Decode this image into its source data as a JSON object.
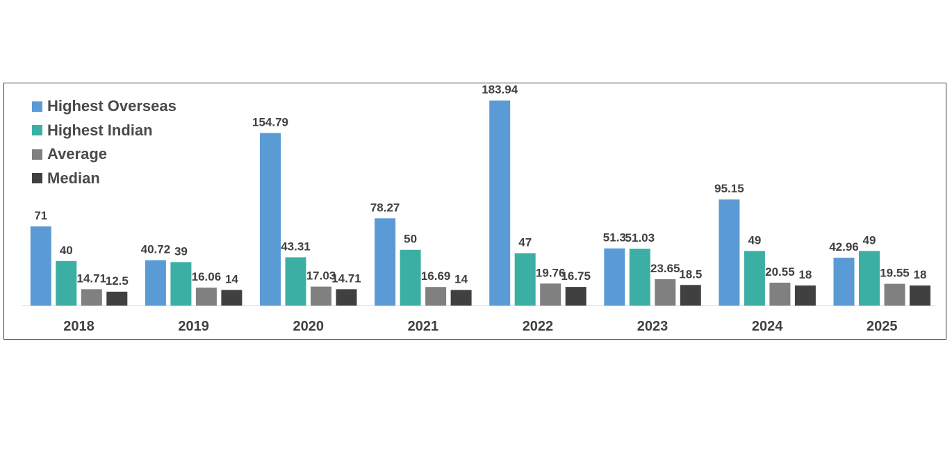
{
  "chart_data": {
    "type": "bar",
    "categories": [
      "2018",
      "2019",
      "2020",
      "2021",
      "2022",
      "2023",
      "2024",
      "2025"
    ],
    "series": [
      {
        "name": "Highest Overseas",
        "color": "#5b9bd5",
        "values": [
          71,
          40.72,
          154.79,
          78.27,
          183.94,
          51.3,
          95.15,
          42.96
        ]
      },
      {
        "name": "Highest Indian",
        "color": "#3cafa5",
        "values": [
          40,
          39,
          43.31,
          50,
          47,
          51.03,
          49,
          49
        ]
      },
      {
        "name": "Average",
        "color": "#808080",
        "values": [
          14.71,
          16.06,
          17.03,
          16.69,
          19.76,
          23.65,
          20.55,
          19.55
        ]
      },
      {
        "name": "Median",
        "color": "#404040",
        "values": [
          12.5,
          14,
          14.71,
          14,
          16.75,
          18.5,
          18,
          18
        ]
      }
    ],
    "title": "",
    "xlabel": "",
    "ylabel": "",
    "ylim": [
      0,
      185
    ],
    "grid": false,
    "legend_position": "top-left",
    "data_labels": true
  }
}
